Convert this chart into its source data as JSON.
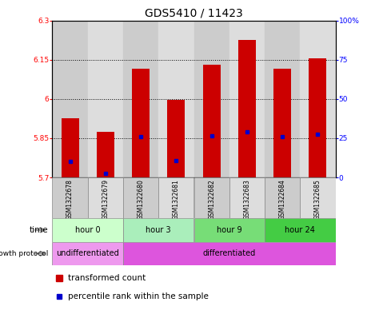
{
  "title": "GDS5410 / 11423",
  "samples": [
    "GSM1322678",
    "GSM1322679",
    "GSM1322680",
    "GSM1322681",
    "GSM1322682",
    "GSM1322683",
    "GSM1322684",
    "GSM1322685"
  ],
  "bar_bottom": 5.7,
  "bar_tops": [
    5.925,
    5.875,
    6.115,
    5.995,
    6.13,
    6.225,
    6.115,
    6.155
  ],
  "blue_positions": [
    5.76,
    5.715,
    5.855,
    5.765,
    5.86,
    5.875,
    5.855,
    5.865
  ],
  "ylim_left": [
    5.7,
    6.3
  ],
  "ylim_right": [
    0,
    100
  ],
  "yticks_left": [
    5.7,
    5.85,
    6.0,
    6.15,
    6.3
  ],
  "ytick_labels_left": [
    "5.7",
    "5.85",
    "6",
    "6.15",
    "6.3"
  ],
  "yticks_right": [
    0,
    25,
    50,
    75,
    100
  ],
  "ytick_labels_right": [
    "0",
    "25",
    "50",
    "75",
    "100%"
  ],
  "bar_color": "#cc0000",
  "blue_color": "#0000cc",
  "bar_width": 0.5,
  "time_groups": [
    {
      "label": "hour 0",
      "cols": [
        0,
        1
      ],
      "color": "#ccffcc"
    },
    {
      "label": "hour 3",
      "cols": [
        2,
        3
      ],
      "color": "#aaeebb"
    },
    {
      "label": "hour 9",
      "cols": [
        4,
        5
      ],
      "color": "#77dd77"
    },
    {
      "label": "hour 24",
      "cols": [
        6,
        7
      ],
      "color": "#44cc44"
    }
  ],
  "growth_groups": [
    {
      "label": "undifferentiated",
      "cols": [
        0,
        1
      ],
      "color": "#ee99ee"
    },
    {
      "label": "differentiated",
      "cols": [
        2,
        3,
        4,
        5,
        6,
        7
      ],
      "color": "#dd55dd"
    }
  ],
  "legend_red_label": "transformed count",
  "legend_blue_label": "percentile rank within the sample",
  "bg_color": "#ffffff",
  "sample_bg_colors": [
    "#cccccc",
    "#dddddd",
    "#cccccc",
    "#dddddd",
    "#cccccc",
    "#dddddd",
    "#cccccc",
    "#dddddd"
  ]
}
